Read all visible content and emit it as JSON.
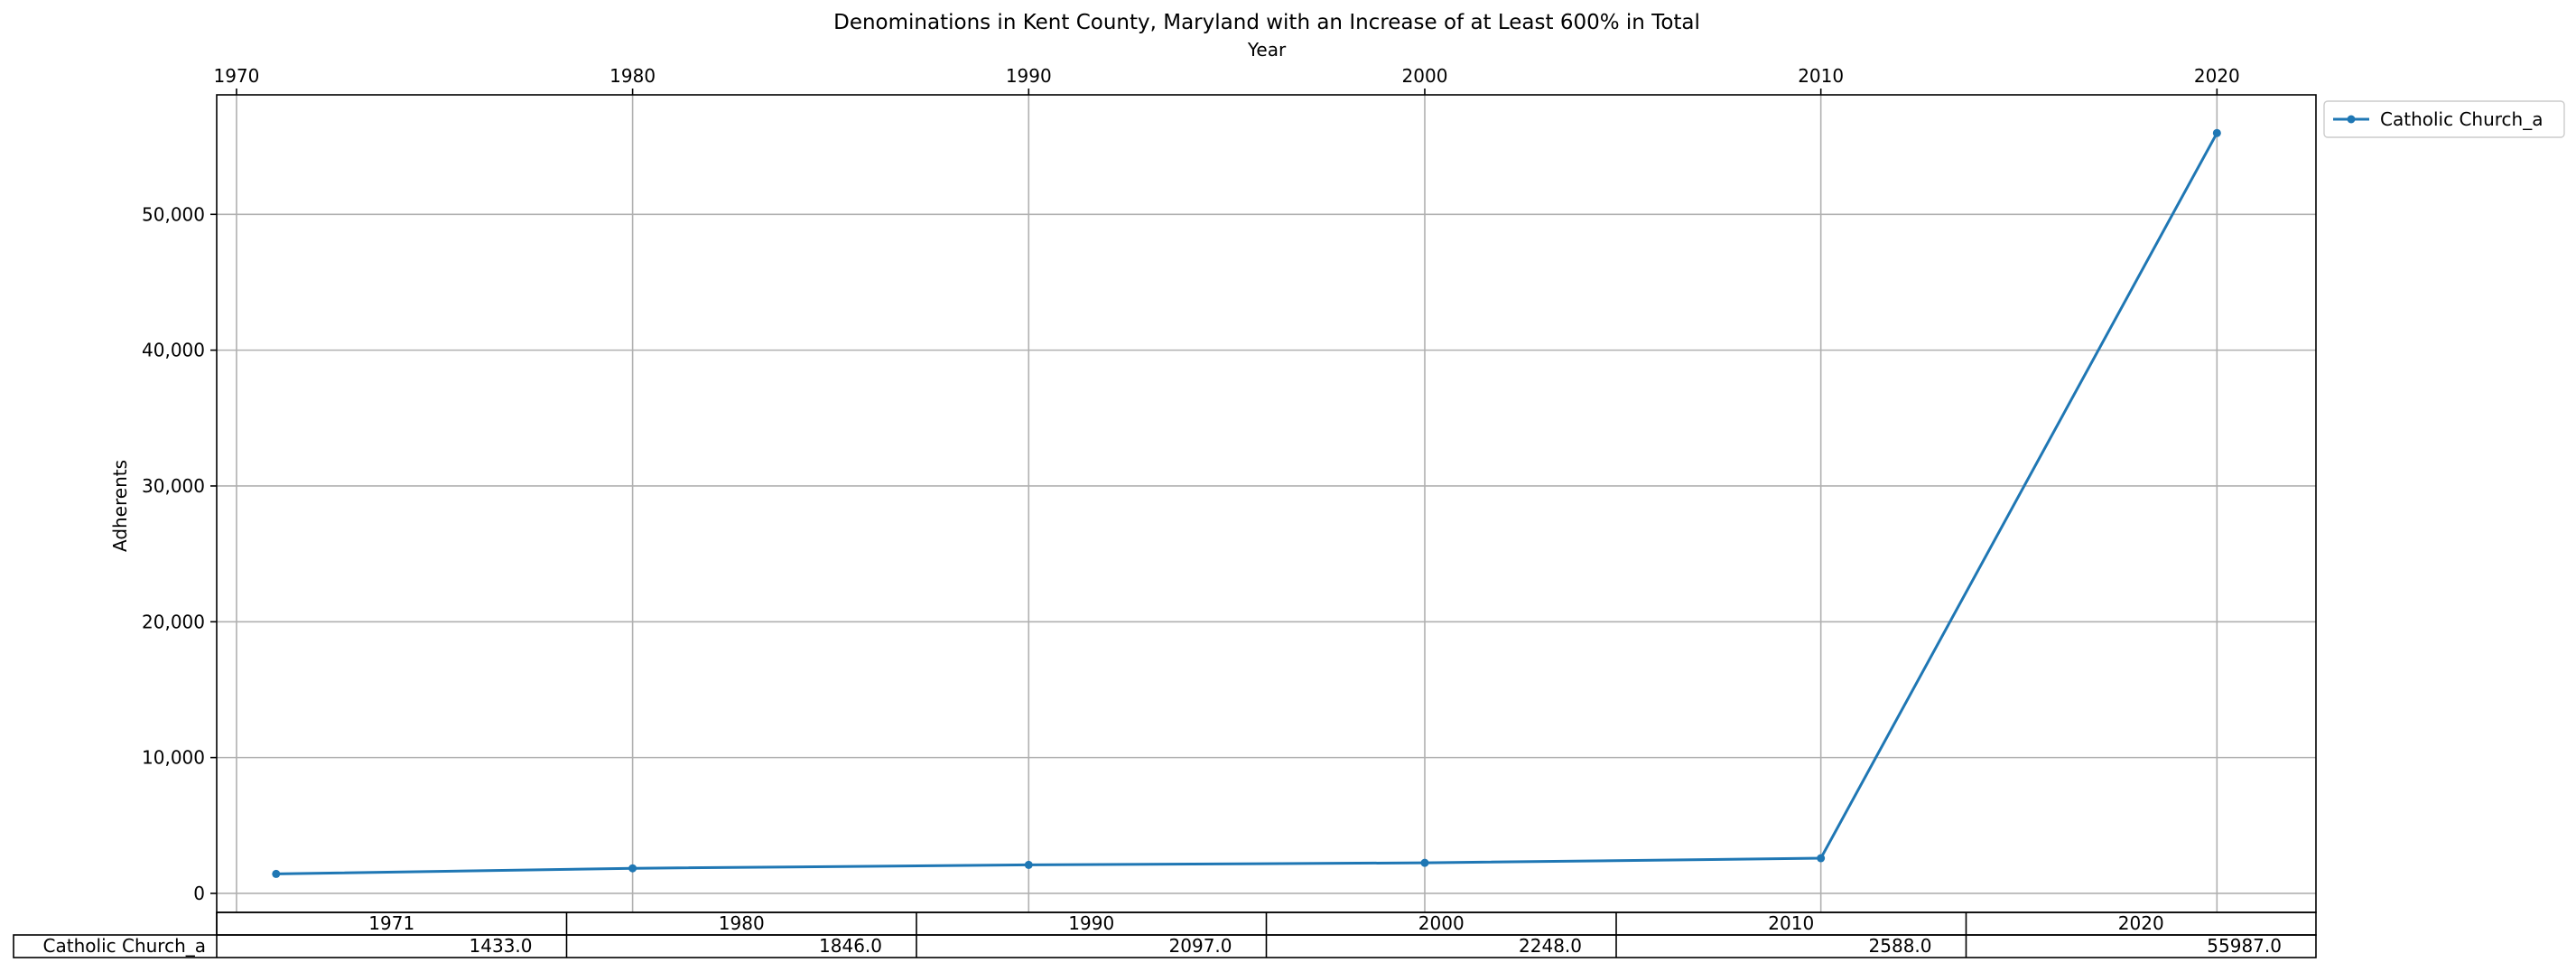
{
  "chart_data": {
    "type": "line",
    "title": "Denominations in Kent County, Maryland with an Increase of at Least 600% in Total",
    "xlabel": "Year",
    "ylabel": "Adherents",
    "x": [
      1971,
      1980,
      1990,
      2000,
      2010,
      2020
    ],
    "xlim": [
      1969.5,
      2022.5
    ],
    "ylim": [
      -1400,
      58800
    ],
    "x_ticks": [
      1970,
      1980,
      1990,
      2000,
      2010,
      2020
    ],
    "x_tick_labels": [
      "1970",
      "1980",
      "1990",
      "2000",
      "2010",
      "2020"
    ],
    "y_ticks": [
      0,
      10000,
      20000,
      30000,
      40000,
      50000
    ],
    "y_tick_labels": [
      "0",
      "10,000",
      "20,000",
      "30,000",
      "40,000",
      "50,000"
    ],
    "x_axis_position": "top",
    "grid": true,
    "legend_position": "outside-top-right",
    "series": [
      {
        "name": "Catholic Church_a",
        "color": "#1f77b4",
        "marker": "dot",
        "values": [
          1433.0,
          1846.0,
          2097.0,
          2248.0,
          2588.0,
          55987.0
        ]
      }
    ],
    "table": {
      "column_headers": [
        "1971",
        "1980",
        "1990",
        "2000",
        "2010",
        "2020"
      ],
      "rows": [
        {
          "label": "Catholic Church_a",
          "cells": [
            "1433.0",
            "1846.0",
            "2097.0",
            "2248.0",
            "2588.0",
            "55987.0"
          ]
        }
      ]
    }
  }
}
